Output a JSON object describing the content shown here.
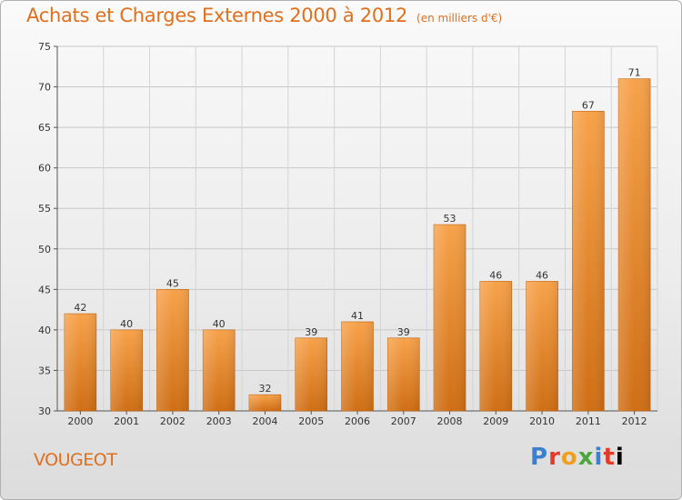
{
  "chart_data": {
    "type": "bar",
    "title": "Achats et Charges Externes 2000 à 2012",
    "subtitle": "(en milliers d'€)",
    "categories": [
      "2000",
      "2001",
      "2002",
      "2003",
      "2004",
      "2005",
      "2006",
      "2007",
      "2008",
      "2009",
      "2010",
      "2011",
      "2012"
    ],
    "values": [
      42,
      40,
      45,
      40,
      32,
      39,
      41,
      39,
      53,
      46,
      46,
      67,
      71
    ],
    "ylim": [
      30,
      75
    ],
    "yticks": [
      30,
      35,
      40,
      45,
      50,
      55,
      60,
      65,
      70,
      75
    ],
    "grid": true,
    "bar_color": "#f0922e",
    "bar_color_dark": "#c96a10"
  },
  "footer": {
    "commune": "VOUGEOT",
    "logo_letters": [
      "P",
      "r",
      "o",
      "x",
      "i",
      "t",
      "i"
    ]
  }
}
